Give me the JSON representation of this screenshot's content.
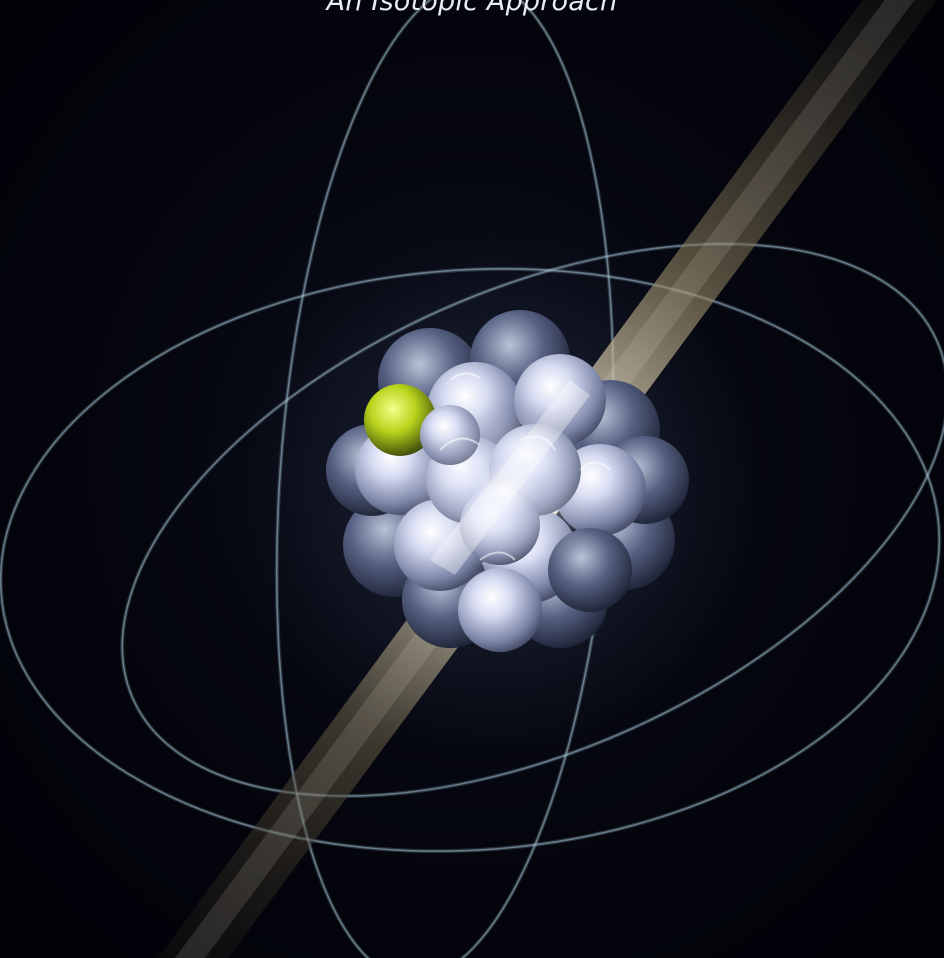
{
  "cover": {
    "subtitle": "An Isotopic Approach"
  },
  "palette": {
    "background": "#02030a",
    "orbit": "#8fb3c9",
    "nucleon": "#c9cfe8",
    "highlight": "#c8e62a",
    "beam": "#c9b98a"
  }
}
